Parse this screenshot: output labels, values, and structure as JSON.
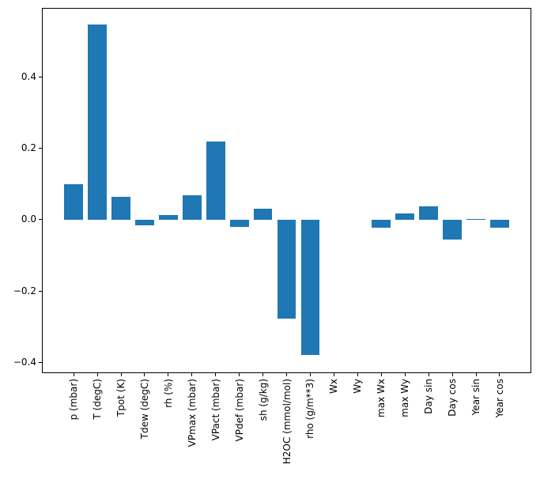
{
  "figure": {
    "background": "#ffffff",
    "spine_color": "#000000"
  },
  "chart_data": {
    "type": "bar",
    "title": "",
    "xlabel": "",
    "ylabel": "",
    "categories": [
      "p (mbar)",
      "T (degC)",
      "Tpot (K)",
      "Tdew (degC)",
      "rh (%)",
      "VPmax (mbar)",
      "VPact (mbar)",
      "VPdef (mbar)",
      "sh (g/kg)",
      "H2OC (mmol/mol)",
      "rho (g/m**3)",
      "Wx",
      "Wy",
      "max Wx",
      "max Wy",
      "Day sin",
      "Day cos",
      "Year sin",
      "Year cos"
    ],
    "values": [
      0.099,
      0.547,
      0.064,
      -0.017,
      0.014,
      0.068,
      0.219,
      -0.021,
      0.031,
      -0.277,
      -0.38,
      0.0,
      0.0,
      -0.022,
      0.018,
      0.037,
      -0.056,
      0.003,
      -0.022
    ],
    "bar_color": "#1f77b4",
    "bar_width_fraction": 0.8,
    "xlim": [
      -1.34,
      19.34
    ],
    "ylim": [
      -0.43,
      0.593
    ],
    "yticks": [
      0.4,
      0.2,
      0.0,
      -0.2,
      -0.4
    ],
    "ytick_labels": [
      "0.4",
      "0.2",
      "0.0",
      "−0.2",
      "−0.4"
    ],
    "grid": false,
    "legend": "none"
  }
}
